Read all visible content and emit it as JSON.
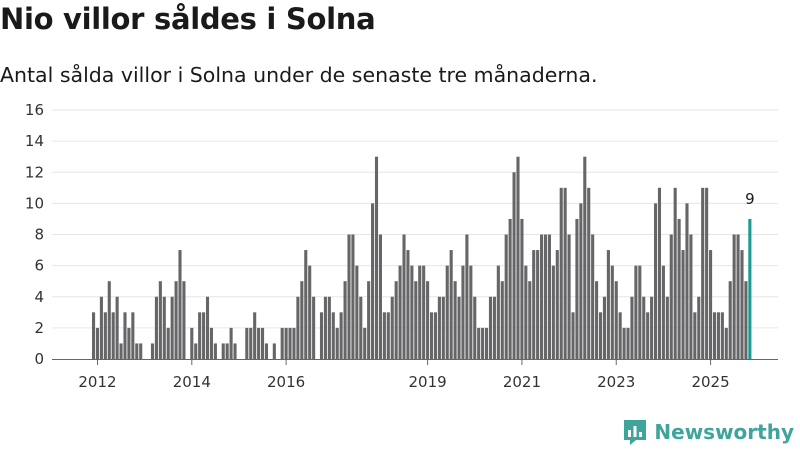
{
  "title": "Nio villor såldes i Solna",
  "subtitle": "Antal sålda villor i Solna under de senaste tre månaderna.",
  "brand": "Newsworthy",
  "colors": {
    "bar": "#666669",
    "highlight": "#1a9a90",
    "grid": "#e6e6e6",
    "axis": "#666666",
    "brand": "#3fa49b"
  },
  "chart_data": {
    "type": "bar",
    "title": "Nio villor såldes i Solna",
    "xlabel": "",
    "ylabel": "",
    "ylim": [
      0,
      16
    ],
    "yticks": [
      0,
      2,
      4,
      6,
      8,
      10,
      12,
      14,
      16
    ],
    "grid": true,
    "start": "2011-12",
    "xticks": [
      {
        "label": "2012",
        "index": 1
      },
      {
        "label": "2014",
        "index": 25
      },
      {
        "label": "2016",
        "index": 49
      },
      {
        "label": "2019",
        "index": 85
      },
      {
        "label": "2021",
        "index": 109
      },
      {
        "label": "2023",
        "index": 133
      },
      {
        "label": "2025",
        "index": 157
      }
    ],
    "values": [
      3,
      2,
      4,
      3,
      5,
      3,
      4,
      1,
      3,
      2,
      3,
      1,
      1,
      0,
      0,
      1,
      4,
      5,
      4,
      2,
      4,
      5,
      7,
      5,
      0,
      2,
      1,
      3,
      3,
      4,
      2,
      1,
      0,
      1,
      1,
      2,
      1,
      0,
      0,
      2,
      2,
      3,
      2,
      2,
      1,
      0,
      1,
      0,
      2,
      2,
      2,
      2,
      4,
      5,
      7,
      6,
      4,
      0,
      3,
      4,
      4,
      3,
      2,
      3,
      5,
      8,
      8,
      6,
      4,
      2,
      5,
      10,
      13,
      8,
      3,
      3,
      4,
      5,
      6,
      8,
      7,
      6,
      5,
      6,
      6,
      5,
      3,
      3,
      4,
      4,
      6,
      7,
      5,
      4,
      6,
      8,
      6,
      4,
      2,
      2,
      2,
      4,
      4,
      6,
      5,
      8,
      9,
      12,
      13,
      9,
      6,
      5,
      7,
      7,
      8,
      8,
      8,
      6,
      7,
      11,
      11,
      8,
      3,
      9,
      10,
      13,
      11,
      8,
      5,
      3,
      4,
      7,
      6,
      5,
      3,
      2,
      2,
      4,
      6,
      6,
      4,
      3,
      4,
      10,
      11,
      6,
      4,
      8,
      11,
      9,
      7,
      10,
      8,
      3,
      4,
      11,
      11,
      7,
      3,
      3,
      3,
      2,
      5,
      8,
      8,
      7,
      5,
      9
    ],
    "highlight_last": true,
    "annotations": [
      {
        "text": "9",
        "target": "last-bar"
      }
    ]
  }
}
